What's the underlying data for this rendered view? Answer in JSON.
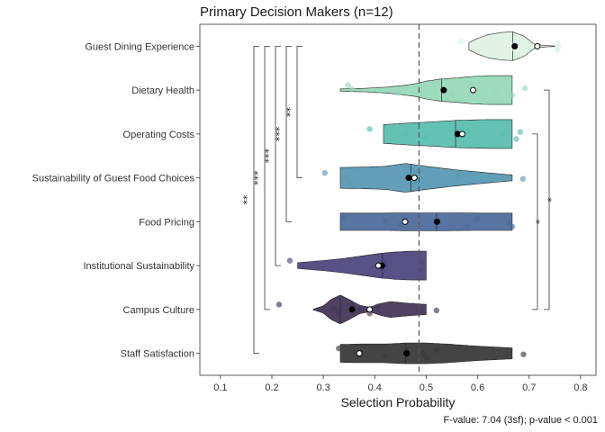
{
  "chart_data": {
    "type": "violin",
    "title": "Primary Decision Makers (n=12)",
    "xlabel": "Selection Probability",
    "caption": "F-value: 7.04 (3sf); p-value < 0.001",
    "xlim": [
      0.06,
      0.83
    ],
    "xticks": [
      "0.1",
      "0.2",
      "0.3",
      "0.4",
      "0.5",
      "0.6",
      "0.7",
      "0.8"
    ],
    "reference_line": 0.486,
    "categories": [
      "Guest Dining Experience",
      "Dietary Health",
      "Operating Costs",
      "Sustainability of Guest Food Choices",
      "Food Pricing",
      "Institutional Sustainability",
      "Campus Culture",
      "Staff Satisfaction"
    ],
    "series": [
      {
        "category": "Guest Dining Experience",
        "color": "#dff3e3",
        "mean": 0.672,
        "median": 0.668,
        "open_marker": 0.716,
        "min": 0.583,
        "max": 0.75,
        "density": [
          [
            0.583,
            0.25
          ],
          [
            0.6,
            0.55
          ],
          [
            0.62,
            0.8
          ],
          [
            0.645,
            0.95
          ],
          [
            0.668,
            1.0
          ],
          [
            0.69,
            0.7
          ],
          [
            0.71,
            0.15
          ],
          [
            0.73,
            0.05
          ],
          [
            0.75,
            0.02
          ]
        ],
        "points": [
          0.568,
          0.665,
          0.672,
          0.685,
          0.716,
          0.755,
          0.756,
          0.757
        ]
      },
      {
        "category": "Dietary Health",
        "color": "#97d9b8",
        "mean": 0.534,
        "median": 0.53,
        "open_marker": 0.591,
        "min": 0.333,
        "max": 0.667,
        "density": [
          [
            0.333,
            0.08
          ],
          [
            0.38,
            0.12
          ],
          [
            0.42,
            0.2
          ],
          [
            0.45,
            0.3
          ],
          [
            0.48,
            0.45
          ],
          [
            0.5,
            0.62
          ],
          [
            0.53,
            0.78
          ],
          [
            0.56,
            0.85
          ],
          [
            0.59,
            0.95
          ],
          [
            0.62,
            1.0
          ],
          [
            0.667,
            1.0
          ]
        ],
        "points": [
          0.348,
          0.355,
          0.446,
          0.488,
          0.534,
          0.55,
          0.59,
          0.636,
          0.667,
          0.692
        ]
      },
      {
        "category": "Operating Costs",
        "color": "#5bbfb0",
        "mean": 0.561,
        "median": 0.557,
        "open_marker": 0.57,
        "min": 0.417,
        "max": 0.667,
        "density": [
          [
            0.417,
            0.65
          ],
          [
            0.46,
            0.75
          ],
          [
            0.5,
            0.82
          ],
          [
            0.56,
            0.95
          ],
          [
            0.62,
            1.0
          ],
          [
            0.667,
            1.0
          ]
        ],
        "points": [
          0.39,
          0.46,
          0.5,
          0.55,
          0.56,
          0.57,
          0.58,
          0.65,
          0.675,
          0.683
        ]
      },
      {
        "category": "Sustainability of Guest Food Choices",
        "color": "#5a99b3",
        "mean": 0.466,
        "median": 0.47,
        "open_marker": 0.477,
        "min": 0.333,
        "max": 0.667,
        "density": [
          [
            0.333,
            0.72
          ],
          [
            0.38,
            0.75
          ],
          [
            0.42,
            0.8
          ],
          [
            0.46,
            1.0
          ],
          [
            0.5,
            0.8
          ],
          [
            0.56,
            0.55
          ],
          [
            0.62,
            0.35
          ],
          [
            0.667,
            0.2
          ]
        ],
        "points": [
          0.303,
          0.345,
          0.35,
          0.466,
          0.47,
          0.477,
          0.56,
          0.688
        ]
      },
      {
        "category": "Food Pricing",
        "color": "#4f6d9c",
        "mean": 0.521,
        "median": 0.52,
        "open_marker": 0.459,
        "min": 0.333,
        "max": 0.667,
        "density": [
          [
            0.333,
            0.6
          ],
          [
            0.38,
            0.6
          ],
          [
            0.42,
            0.6
          ],
          [
            0.46,
            0.62
          ],
          [
            0.5,
            0.62
          ],
          [
            0.54,
            0.62
          ],
          [
            0.6,
            0.6
          ],
          [
            0.667,
            0.6
          ]
        ],
        "points": [
          0.338,
          0.42,
          0.45,
          0.459,
          0.521,
          0.58,
          0.6,
          0.661,
          0.667
        ]
      },
      {
        "category": "Institutional Sustainability",
        "color": "#4e4880",
        "mean": 0.414,
        "median": 0.415,
        "open_marker": 0.407,
        "min": 0.25,
        "max": 0.5,
        "density": [
          [
            0.25,
            0.2
          ],
          [
            0.3,
            0.35
          ],
          [
            0.34,
            0.5
          ],
          [
            0.38,
            0.7
          ],
          [
            0.41,
            0.85
          ],
          [
            0.44,
            0.95
          ],
          [
            0.47,
            1.0
          ],
          [
            0.5,
            1.0
          ]
        ],
        "points": [
          0.235,
          0.407,
          0.414,
          0.418,
          0.42,
          0.49,
          0.492
        ]
      },
      {
        "category": "Campus Culture",
        "color": "#463758",
        "mean": 0.356,
        "median": 0.333,
        "open_marker": 0.39,
        "min": 0.28,
        "max": 0.5,
        "density": [
          [
            0.28,
            0.02
          ],
          [
            0.3,
            0.25
          ],
          [
            0.315,
            0.7
          ],
          [
            0.333,
            1.0
          ],
          [
            0.35,
            0.7
          ],
          [
            0.37,
            0.3
          ],
          [
            0.39,
            0.15
          ],
          [
            0.41,
            0.4
          ],
          [
            0.43,
            0.55
          ],
          [
            0.46,
            0.45
          ],
          [
            0.5,
            0.35
          ]
        ],
        "points": [
          0.214,
          0.32,
          0.33,
          0.356,
          0.37,
          0.39,
          0.405,
          0.52
        ]
      },
      {
        "category": "Staff Satisfaction",
        "color": "#3a3a3a",
        "mean": 0.462,
        "median": 0.46,
        "open_marker": 0.37,
        "min": 0.333,
        "max": 0.667,
        "density": [
          [
            0.333,
            0.62
          ],
          [
            0.37,
            0.65
          ],
          [
            0.42,
            0.65
          ],
          [
            0.46,
            0.72
          ],
          [
            0.5,
            0.72
          ],
          [
            0.54,
            0.65
          ],
          [
            0.6,
            0.5
          ],
          [
            0.667,
            0.38
          ]
        ],
        "points": [
          0.33,
          0.37,
          0.42,
          0.462,
          0.495,
          0.5,
          0.52,
          0.689
        ]
      }
    ],
    "brackets_left": [
      {
        "from": "Guest Dining Experience",
        "to": "Staff Satisfaction",
        "label": "**"
      },
      {
        "from": "Guest Dining Experience",
        "to": "Campus Culture",
        "label": "***"
      },
      {
        "from": "Guest Dining Experience",
        "to": "Institutional Sustainability",
        "label": "***"
      },
      {
        "from": "Guest Dining Experience",
        "to": "Food Pricing",
        "label": "***"
      },
      {
        "from": "Guest Dining Experience",
        "to": "Sustainability of Guest Food Choices",
        "label": "**"
      }
    ],
    "brackets_right": [
      {
        "from": "Dietary Health",
        "to": "Campus Culture",
        "label": "*"
      },
      {
        "from": "Operating Costs",
        "to": "Campus Culture",
        "label": "*"
      }
    ]
  }
}
